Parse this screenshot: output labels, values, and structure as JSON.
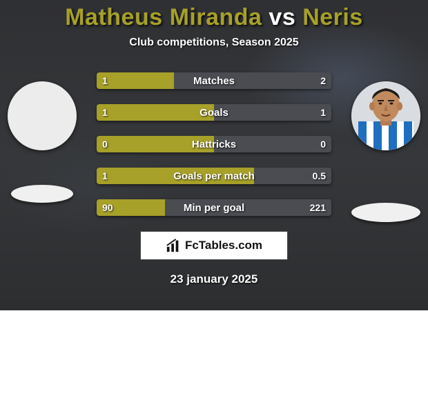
{
  "title": {
    "player1": "Matheus Miranda",
    "vs": "vs",
    "player2": "Neris",
    "p1_color": "#a7a029",
    "vs_color": "#ffffff",
    "p2_color": "#a7a029"
  },
  "subtitle": "Club competitions, Season 2025",
  "colors": {
    "left": "#a7a029",
    "right": "#4a4c52",
    "card_bg": "#34363a"
  },
  "stats": [
    {
      "label": "Matches",
      "left_val": "1",
      "right_val": "2",
      "left_pct": 33,
      "right_pct": 67
    },
    {
      "label": "Goals",
      "left_val": "1",
      "right_val": "1",
      "left_pct": 50,
      "right_pct": 50
    },
    {
      "label": "Hattricks",
      "left_val": "0",
      "right_val": "0",
      "left_pct": 50,
      "right_pct": 50
    },
    {
      "label": "Goals per match",
      "left_val": "1",
      "right_val": "0.5",
      "left_pct": 67,
      "right_pct": 33
    },
    {
      "label": "Min per goal",
      "left_val": "90",
      "right_val": "221",
      "left_pct": 29,
      "right_pct": 71
    }
  ],
  "brand": "FcTables.com",
  "date": "23 january 2025",
  "right_player_kit": {
    "stripe1": "#1f6fc0",
    "stripe2": "#ffffff",
    "skin": "#c08a5e"
  }
}
